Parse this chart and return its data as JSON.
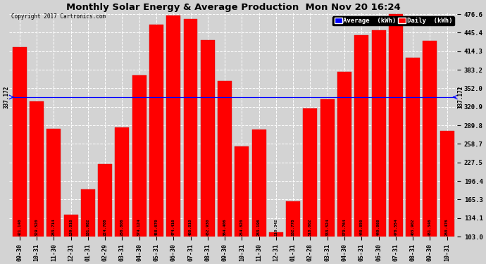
{
  "title": "Monthly Solar Energy & Average Production  Mon Nov 20 16:24",
  "copyright": "Copyright 2017 Cartronics.com",
  "categories": [
    "09-30",
    "10-31",
    "11-30",
    "12-31",
    "01-31",
    "02-29",
    "03-31",
    "04-30",
    "05-31",
    "06-30",
    "07-31",
    "08-31",
    "09-30",
    "10-31",
    "11-30",
    "12-31",
    "01-31",
    "02-28",
    "03-31",
    "04-30",
    "05-31",
    "06-30",
    "07-31",
    "08-31",
    "09-30",
    "10-31"
  ],
  "values": [
    421.14,
    329.52,
    283.714,
    139.816,
    181.982,
    224.708,
    286.806,
    374.124,
    458.67,
    474.416,
    468.81,
    432.93,
    364.406,
    254.82,
    283.196,
    110.342,
    162.778,
    318.002,
    333.524,
    379.764,
    440.85,
    449.868,
    476.554,
    403.902,
    431.346,
    280.476
  ],
  "average": 337.172,
  "bar_color": "#ff0000",
  "avg_line_color": "#0000ff",
  "background_color": "#d3d3d3",
  "plot_bg_color": "#d3d3d3",
  "ylim_min": 103.0,
  "ylim_max": 476.6,
  "yticks": [
    103.0,
    134.1,
    165.3,
    196.4,
    227.5,
    258.7,
    289.8,
    320.9,
    352.0,
    383.2,
    414.3,
    445.4,
    476.6
  ],
  "avg_label": "337.172",
  "legend_avg_color": "#0000ff",
  "legend_daily_color": "#ff0000",
  "legend_avg_text": "Average  (kWh)",
  "legend_daily_text": "Daily  (kWh)"
}
